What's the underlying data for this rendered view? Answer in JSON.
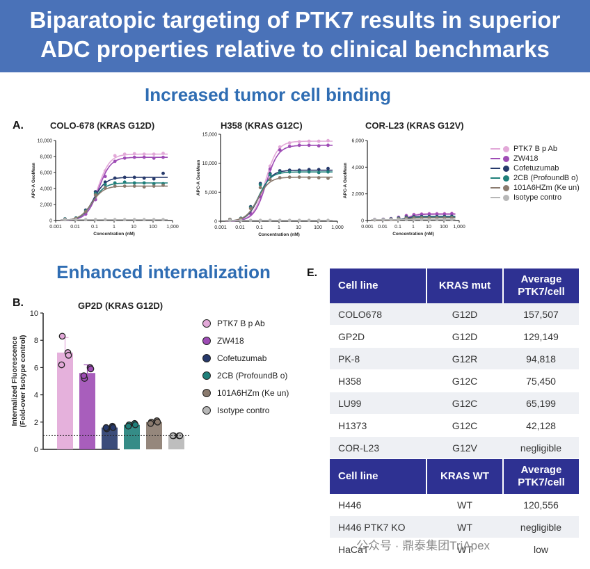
{
  "banner": {
    "line1": "Biparatopic targeting of PTK7 results in superior",
    "line2": "ADC properties relative to clinical benchmarks"
  },
  "sections": {
    "binding_title": "Increased tumor cell binding",
    "internalization_title": "Enhanced internalization"
  },
  "panels": {
    "a": "A.",
    "b": "B.",
    "e": "E."
  },
  "colors": {
    "ptk7": "#e2a8d8",
    "zw418": "#9e4cb5",
    "cofetuzumab": "#26396b",
    "cb2": "#1f7f7a",
    "ab101": "#8a7a6e",
    "isotype": "#b7b7b7",
    "banner": "#4a72b8",
    "table_header": "#2e3192"
  },
  "chart_data": [
    {
      "type": "line",
      "title": "COLO-678 (KRAS G12D)",
      "xlabel": "Concentration (nM)",
      "ylabel": "APC-A GeoMean",
      "x_scale": "log",
      "xlim": [
        0.001,
        1000
      ],
      "xticks": [
        "0.001",
        "0.01",
        "0.1",
        "1",
        "10",
        "100",
        "1,000"
      ],
      "ylim": [
        0,
        10000
      ],
      "yticks": [
        "0",
        "2,000",
        "4,000",
        "6,000",
        "8,000",
        "10,000"
      ],
      "x": [
        0.003,
        0.011,
        0.035,
        0.11,
        0.35,
        1.1,
        3.5,
        11,
        35,
        110,
        330
      ],
      "series": [
        {
          "name": "PTK7 B p Ab",
          "color_key": "ptk7",
          "top": 8300,
          "ec50": 0.15,
          "values": [
            200,
            250,
            900,
            2800,
            6200,
            8100,
            8300,
            8350,
            8300,
            8300,
            8400
          ]
        },
        {
          "name": "ZW418",
          "color_key": "zw418",
          "top": 7900,
          "ec50": 0.16,
          "values": [
            150,
            200,
            800,
            2600,
            5500,
            7400,
            7800,
            7900,
            7900,
            7800,
            7900
          ]
        },
        {
          "name": "Cofetuzumab",
          "color_key": "cofetuzumab",
          "top": 5400,
          "ec50": 0.09,
          "values": [
            200,
            300,
            1300,
            3600,
            4800,
            5300,
            5400,
            5400,
            5300,
            5200,
            5900
          ]
        },
        {
          "name": "2CB (ProfoundB o)",
          "color_key": "cb2",
          "top": 4700,
          "ec50": 0.08,
          "values": [
            200,
            300,
            1200,
            3400,
            4500,
            4700,
            4800,
            4700,
            4700,
            4600,
            4600
          ]
        },
        {
          "name": "101A6HZm (Ke un)",
          "color_key": "ab101",
          "top": 4300,
          "ec50": 0.07,
          "values": [
            150,
            250,
            1100,
            3200,
            4100,
            4300,
            4300,
            4300,
            4200,
            4300,
            4400
          ]
        },
        {
          "name": "Isotype contro",
          "color_key": "isotype",
          "top": 100,
          "ec50": 1,
          "values": [
            100,
            100,
            100,
            100,
            100,
            100,
            100,
            100,
            100,
            100,
            100
          ]
        }
      ]
    },
    {
      "type": "line",
      "title": "H358 (KRAS G12C)",
      "xlabel": "Concentration (nM)",
      "ylabel": "APC-A GeoMean",
      "x_scale": "log",
      "xlim": [
        0.001,
        1000
      ],
      "xticks": [
        "0.001",
        "0.01",
        "0.1",
        "1",
        "10",
        "100",
        "1,000"
      ],
      "ylim": [
        0,
        15000
      ],
      "yticks": [
        "0",
        "5,000",
        "10,000",
        "15,000"
      ],
      "x": [
        0.003,
        0.011,
        0.035,
        0.11,
        0.35,
        1.1,
        3.5,
        11,
        35,
        110,
        330
      ],
      "series": [
        {
          "name": "PTK7 B p Ab",
          "color_key": "ptk7",
          "top": 13800,
          "ec50": 0.2,
          "values": [
            300,
            400,
            1500,
            4500,
            9500,
            12800,
            13500,
            13700,
            13800,
            13800,
            13900
          ]
        },
        {
          "name": "ZW418",
          "color_key": "zw418",
          "top": 13100,
          "ec50": 0.22,
          "values": [
            250,
            350,
            1300,
            4200,
            9000,
            12300,
            12900,
            13100,
            13100,
            13000,
            13100
          ]
        },
        {
          "name": "Cofetuzumab",
          "color_key": "cofetuzumab",
          "top": 8800,
          "ec50": 0.1,
          "values": [
            300,
            500,
            2500,
            6500,
            8200,
            8700,
            8800,
            8800,
            8900,
            8900,
            9100
          ]
        },
        {
          "name": "2CB (ProfoundB o)",
          "color_key": "cb2",
          "top": 8500,
          "ec50": 0.09,
          "values": [
            300,
            500,
            2400,
            6300,
            8000,
            8400,
            8500,
            8500,
            8500,
            8400,
            8500
          ]
        },
        {
          "name": "101A6HZm (Ke un)",
          "color_key": "ab101",
          "top": 7600,
          "ec50": 0.08,
          "values": [
            300,
            450,
            2200,
            5800,
            7200,
            7500,
            7600,
            7600,
            7500,
            7500,
            7400
          ]
        },
        {
          "name": "Isotype contro",
          "color_key": "isotype",
          "top": 150,
          "ec50": 1,
          "values": [
            150,
            150,
            150,
            150,
            150,
            150,
            150,
            150,
            150,
            150,
            150
          ]
        }
      ]
    },
    {
      "type": "line",
      "title": "COR-L23 (KRAS G12V)",
      "xlabel": "Concentration (nM)",
      "ylabel": "APC-A GeoMean",
      "x_scale": "log",
      "xlim": [
        0.001,
        1000
      ],
      "xticks": [
        "0.001",
        "0.01",
        "0.1",
        "1",
        "10",
        "100",
        "1,000"
      ],
      "ylim": [
        0,
        6000
      ],
      "yticks": [
        "0",
        "2,000",
        "4,000",
        "6,000"
      ],
      "x": [
        0.003,
        0.011,
        0.035,
        0.11,
        0.35,
        1.1,
        3.5,
        11,
        35,
        110,
        330
      ],
      "series": [
        {
          "name": "PTK7 B p Ab",
          "color_key": "ptk7",
          "top": 520,
          "ec50": 0.5,
          "values": [
            80,
            100,
            150,
            250,
            380,
            460,
            500,
            520,
            520,
            520,
            540
          ]
        },
        {
          "name": "ZW418",
          "color_key": "zw418",
          "top": 480,
          "ec50": 0.5,
          "values": [
            70,
            90,
            140,
            230,
            350,
            430,
            460,
            480,
            480,
            480,
            500
          ]
        },
        {
          "name": "Cofetuzumab",
          "color_key": "cofetuzumab",
          "top": 300,
          "ec50": 0.3,
          "values": [
            60,
            80,
            120,
            180,
            250,
            280,
            300,
            300,
            300,
            310,
            320
          ]
        },
        {
          "name": "2CB (ProfoundB o)",
          "color_key": "cb2",
          "top": 250,
          "ec50": 0.3,
          "values": [
            60,
            70,
            110,
            160,
            210,
            240,
            250,
            250,
            250,
            260,
            260
          ]
        },
        {
          "name": "101A6HZm (Ke un)",
          "color_key": "ab101",
          "top": 200,
          "ec50": 0.3,
          "values": [
            50,
            60,
            90,
            130,
            170,
            190,
            200,
            200,
            200,
            200,
            210
          ]
        },
        {
          "name": "Isotype contro",
          "color_key": "isotype",
          "top": 60,
          "ec50": 1,
          "values": [
            60,
            60,
            60,
            60,
            60,
            60,
            60,
            60,
            60,
            60,
            60
          ]
        }
      ]
    },
    {
      "type": "bar",
      "title": "GP2D (KRAS G12D)",
      "ylabel_line1": "Internalized Fluorescence",
      "ylabel_line2": "(Fold-over Isotype control)",
      "ylim": [
        0,
        10
      ],
      "yticks": [
        "0",
        "2",
        "4",
        "6",
        "8",
        "10"
      ],
      "reference_line": 1,
      "categories": [
        "PTK7 B p Ab",
        "ZW418",
        "Cofetuzumab",
        "2CB (ProfoundB o)",
        "101A6HZm (Ke un)",
        "Isotype contro"
      ],
      "color_keys": [
        "ptk7",
        "zw418",
        "cofetuzumab",
        "cb2",
        "ab101",
        "isotype"
      ],
      "values": [
        7.1,
        5.6,
        1.6,
        1.8,
        2.0,
        1.0
      ],
      "errors": [
        1.1,
        0.6,
        0.1,
        0.1,
        0.1,
        0.05
      ],
      "points": [
        [
          8.3,
          7.1,
          6.2,
          6.9
        ],
        [
          5.2,
          6.0,
          5.4,
          5.9
        ],
        [
          1.5,
          1.7,
          1.6,
          1.6
        ],
        [
          1.8,
          1.9,
          1.7,
          1.8
        ],
        [
          2.0,
          2.1,
          1.9,
          2.0
        ],
        [
          1.0,
          1.0,
          1.0,
          1.0
        ]
      ]
    },
    {
      "type": "table",
      "header1": {
        "c0": "Cell line",
        "c1": "KRAS mut",
        "c2a": "Average",
        "c2b": "PTK7/cell"
      },
      "rows1": [
        {
          "c0": "COLO678",
          "c1": "G12D",
          "c2": "157,507"
        },
        {
          "c0": "GP2D",
          "c1": "G12D",
          "c2": "129,149"
        },
        {
          "c0": "PK-8",
          "c1": "G12R",
          "c2": "94,818"
        },
        {
          "c0": "H358",
          "c1": "G12C",
          "c2": "75,450"
        },
        {
          "c0": "LU99",
          "c1": "G12C",
          "c2": "65,199"
        },
        {
          "c0": "H1373",
          "c1": "G12C",
          "c2": "42,128"
        },
        {
          "c0": "COR-L23",
          "c1": "G12V",
          "c2": "negligible"
        }
      ],
      "header2": {
        "c0": "Cell line",
        "c1": "KRAS WT",
        "c2a": "Average",
        "c2b": "PTK7/cell"
      },
      "rows2": [
        {
          "c0": "H446",
          "c1": "WT",
          "c2": "120,556"
        },
        {
          "c0": "H446 PTK7 KO",
          "c1": "WT",
          "c2": "negligible"
        },
        {
          "c0": "HaCaT",
          "c1": "WT",
          "c2": "low"
        }
      ]
    }
  ],
  "legend_a": [
    "PTK7 B p Ab",
    "ZW418",
    "Cofetuzumab",
    "2CB (ProfoundB o)",
    "101A6HZm (Ke un)",
    "Isotype contro"
  ],
  "legend_b": [
    "PTK7 B p Ab",
    "ZW418",
    "Cofetuzumab",
    "2CB (ProfoundB o)",
    "101A6HZm (Ke un)",
    "Isotype contro"
  ],
  "watermark": "公众号 · 鼎泰集团TriApex"
}
